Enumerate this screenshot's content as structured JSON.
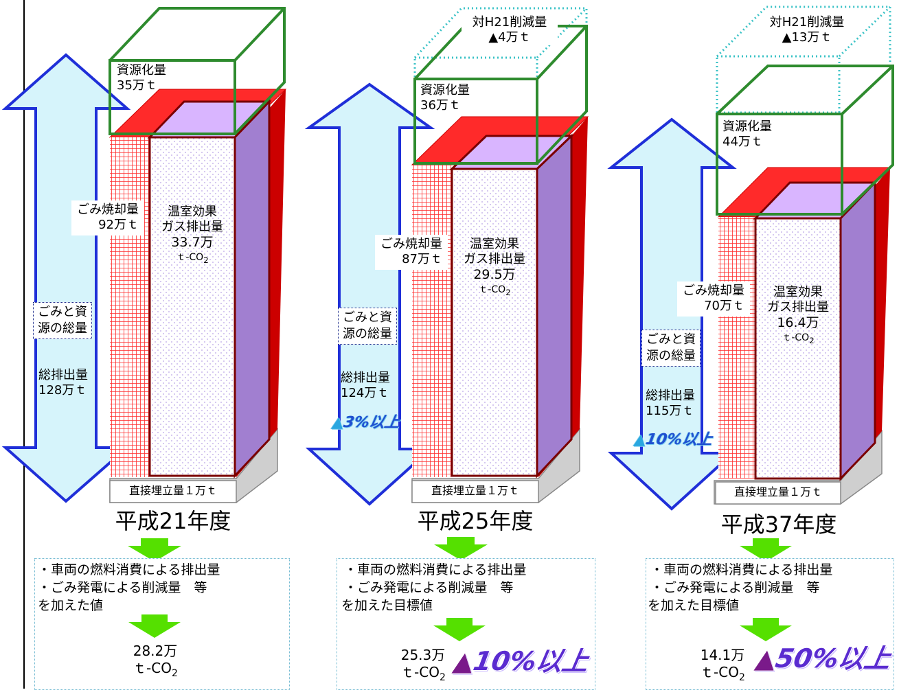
{
  "panels": [
    {
      "year": "平成21年度",
      "resource_label": "資源化量",
      "resource_value": "35万ｔ",
      "incineration_label": "ごみ焼却量",
      "incineration_value": "92万ｔ",
      "ghg_line1": "温室効果",
      "ghg_line2": "ガス排出量",
      "ghg_value": "33.7万",
      "ghg_unit": "ｔ-CO",
      "ghg_sub": "2",
      "total_box": "ごみと資源の総量",
      "total_box_l1": "ごみと資",
      "total_box_l2": "源の総量",
      "total_label": "総排出量",
      "total_value": "128万ｔ",
      "landfill": "直接埋立量１万ｔ",
      "note_line1": "・車両の燃料消費による排出量",
      "note_line2": "・ごみ発電による削減量　等",
      "note_line3": "を加えた値",
      "result_value": "28.2万",
      "result_unit": "ｔ-CO",
      "result_sub": "2"
    },
    {
      "year": "平成25年度",
      "reduction_label": "対H21削減量",
      "reduction_value": "▲4万ｔ",
      "resource_label": "資源化量",
      "resource_value": "36万ｔ",
      "incineration_label": "ごみ焼却量",
      "incineration_value": "87万ｔ",
      "ghg_line1": "温室効果",
      "ghg_line2": "ガス排出量",
      "ghg_value": "29.5万",
      "ghg_unit": "ｔ-CO",
      "ghg_sub": "2",
      "total_box_l1": "ごみと資",
      "total_box_l2": "源の総量",
      "total_label": "総排出量",
      "total_value": "124万ｔ",
      "total_pct_tri": "▲",
      "total_pct": "3%以上",
      "landfill": "直接埋立量１万ｔ",
      "note_line1": "・車両の燃料消費による排出量",
      "note_line2": "・ごみ発電による削減量　等",
      "note_line3": "を加えた目標値",
      "result_value": "25.3万",
      "result_unit": "ｔ-CO",
      "result_sub": "2",
      "result_pct_tri": "▲",
      "result_pct": "10%以上"
    },
    {
      "year": "平成37年度",
      "reduction_label": "対H21削減量",
      "reduction_value": "▲13万ｔ",
      "resource_label": "資源化量",
      "resource_value": "44万ｔ",
      "incineration_label": "ごみ焼却量",
      "incineration_value": "70万ｔ",
      "ghg_line1": "温室効果",
      "ghg_line2": "ガス排出量",
      "ghg_value": "16.4万",
      "ghg_unit": "ｔ-CO",
      "ghg_sub": "2",
      "total_box_l1": "ごみと資",
      "total_box_l2": "源の総量",
      "total_label": "総排出量",
      "total_value": "115万ｔ",
      "total_pct_tri": "▲",
      "total_pct": "10%以上",
      "landfill": "直接埋立量１万ｔ",
      "note_line1": "・車両の燃料消費による排出量",
      "note_line2": "・ごみ発電による削減量　等",
      "note_line3": "を加えた目標値",
      "result_value": "14.1万",
      "result_unit": "ｔ-CO",
      "result_sub": "2",
      "result_pct_tri": "▲",
      "result_pct": "50%以上"
    }
  ],
  "colors": {
    "arrow_fill": "#d6f4fb",
    "arrow_stroke": "#1f2fd8",
    "red": "#ff2a2a",
    "dark_red": "#c80000",
    "purple_top": "#d9b5ff",
    "purple_side": "#a17fd0",
    "green_box": "#2e8b2e",
    "cyan_dotted": "#39c2c6",
    "green_arrow": "#55e000"
  }
}
